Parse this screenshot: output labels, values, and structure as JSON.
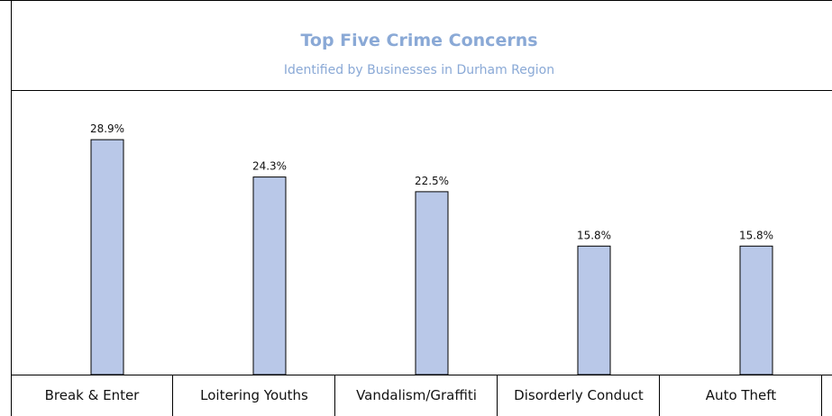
{
  "chart_data": {
    "type": "bar",
    "title": "Top Five Crime Concerns",
    "subtitle": "Identified by Businesses in Durham Region",
    "categories": [
      "Break & Enter",
      "Loitering Youths",
      "Vandalism/Graffiti",
      "Disorderly Conduct",
      "Auto Theft"
    ],
    "values": [
      28.9,
      24.3,
      22.5,
      15.8,
      15.8
    ],
    "value_labels": [
      "28.9%",
      "24.3%",
      "22.5%",
      "15.8%",
      "15.8%"
    ],
    "unit": "%",
    "ylim": [
      0,
      35
    ],
    "grid": false,
    "legend": "none",
    "colors": {
      "bar_fill": "#b9c8e8",
      "bar_stroke": "#000000",
      "title": "#8aa9d6"
    }
  }
}
